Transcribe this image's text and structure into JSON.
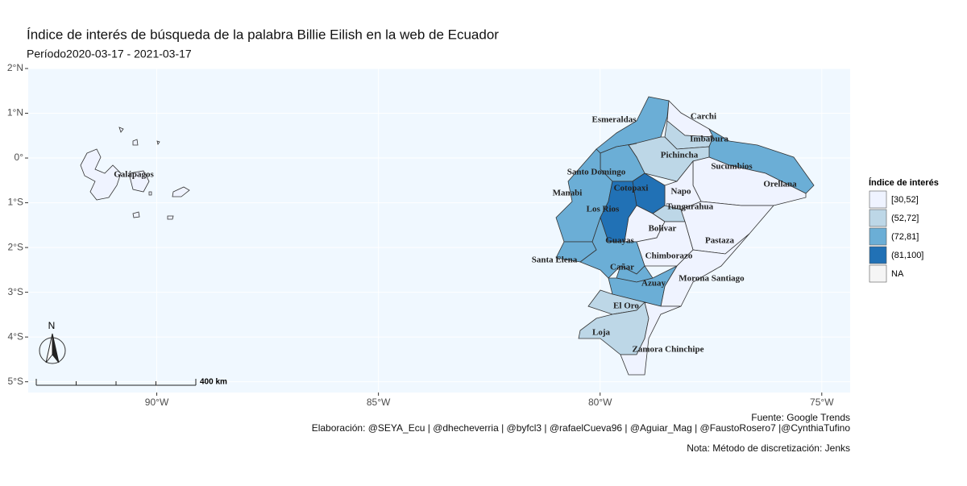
{
  "title": "Índice de interés de búsqueda de la palabra Billie Eilish en la web de Ecuador",
  "subtitle": "Período2020-03-17 - 2021-03-17",
  "xlim": [
    -92.9,
    -74.36
  ],
  "ylim": [
    -5.24,
    2.0
  ],
  "xticks": [
    {
      "value": -90,
      "label": "90°W"
    },
    {
      "value": -85,
      "label": "85°W"
    },
    {
      "value": -80,
      "label": "80°W"
    },
    {
      "value": -75,
      "label": "75°W"
    }
  ],
  "yticks": [
    {
      "value": 2,
      "label": "2°N"
    },
    {
      "value": 1,
      "label": "1°N"
    },
    {
      "value": 0,
      "label": "0°"
    },
    {
      "value": -1,
      "label": "1°S"
    },
    {
      "value": -2,
      "label": "2°S"
    },
    {
      "value": -3,
      "label": "3°S"
    },
    {
      "value": -4,
      "label": "4°S"
    },
    {
      "value": -5,
      "label": "5°S"
    }
  ],
  "provinces": [
    {
      "name": "Esmeraldas",
      "color": "#6baed6"
    },
    {
      "name": "Carchi",
      "color": "#eff3ff"
    },
    {
      "name": "Imbabura",
      "color": "#bdd7e7"
    },
    {
      "name": "Sucumbios",
      "color": "#6baed6"
    },
    {
      "name": "Pichincha",
      "color": "#bdd7e7"
    },
    {
      "name": "Orellana",
      "color": "#eff3ff"
    },
    {
      "name": "Napo",
      "color": "#eff3ff"
    },
    {
      "name": "Santo Domingo",
      "color": "#6baed6"
    },
    {
      "name": "Cotopaxi",
      "color": "#2171b5"
    },
    {
      "name": "Manabi",
      "color": "#6baed6"
    },
    {
      "name": "Los Rios",
      "color": "#2171b5"
    },
    {
      "name": "Tungurahua",
      "color": "#bdd7e7"
    },
    {
      "name": "Pastaza",
      "color": "#eff3ff"
    },
    {
      "name": "Bolivar",
      "color": "#eff3ff"
    },
    {
      "name": "Chimborazo",
      "color": "#eff3ff"
    },
    {
      "name": "Guayas",
      "color": "#6baed6"
    },
    {
      "name": "Santa Elena",
      "color": "#6baed6"
    },
    {
      "name": "Cañar",
      "color": "#6baed6"
    },
    {
      "name": "Morona Santiago",
      "color": "#eff3ff"
    },
    {
      "name": "Azuay",
      "color": "#6baed6"
    },
    {
      "name": "El Oro",
      "color": "#bdd7e7"
    },
    {
      "name": "Loja",
      "color": "#bdd7e7"
    },
    {
      "name": "Zamora Chinchipe",
      "color": "#eff3ff"
    },
    {
      "name": "Galápagos",
      "color": "#eff3ff"
    }
  ],
  "legend": {
    "title": "Índice de interés",
    "items": [
      {
        "label": "[30,52]",
        "color": "#eff3ff"
      },
      {
        "label": "(52,72]",
        "color": "#bdd7e7"
      },
      {
        "label": "(72,81]",
        "color": "#6baed6"
      },
      {
        "label": "(81,100]",
        "color": "#2171b5"
      },
      {
        "label": "NA",
        "color": "#f5f5f5"
      }
    ]
  },
  "north": "N",
  "scale_label": "400 km",
  "source": "Fuente: Google Trends",
  "credits": "Elaboración:  @SEYA_Ecu | @dhecheverria | @byfcl3 | @rafaelCueva96 | @Aguiar_Mag | @FaustoRosero7 |@CynthiaTufino",
  "note": "Nota: Método de discretización: Jenks"
}
